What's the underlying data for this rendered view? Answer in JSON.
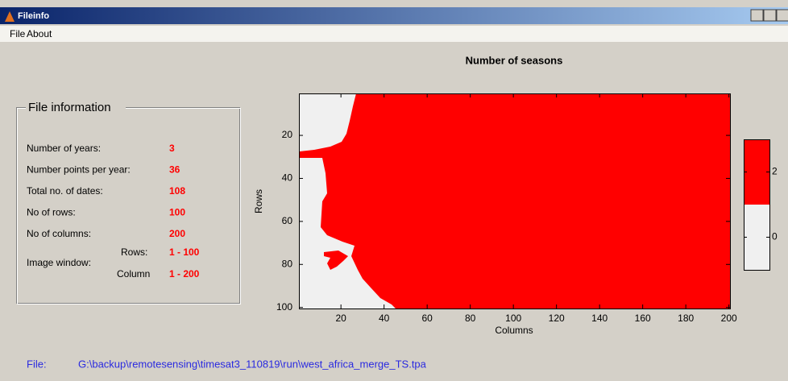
{
  "window": {
    "title": "Fileinfo"
  },
  "menu": [
    "File",
    "About"
  ],
  "file_info": {
    "title": "File information",
    "rows": [
      {
        "label": "Number of years:",
        "value": "3"
      },
      {
        "label": "Number points per year:",
        "value": "36"
      },
      {
        "label": "Total no. of dates:",
        "value": "108"
      },
      {
        "label": "No of rows:",
        "value": "100"
      },
      {
        "label": "No of columns:",
        "value": "200"
      }
    ],
    "image_window": {
      "label": "Image window:",
      "rows_label": "Rows:",
      "rows_value": "1 - 100",
      "column_label": "Column",
      "column_value": "1 - 200"
    }
  },
  "chart_data": {
    "type": "image",
    "title": "Number of seasons",
    "xlabel": "Columns",
    "ylabel": "Rows",
    "xlim": [
      0.5,
      200.5
    ],
    "ylim": [
      0.5,
      100.5
    ],
    "xticks": [
      20,
      40,
      60,
      80,
      100,
      120,
      140,
      160,
      180,
      200
    ],
    "yticks": [
      20,
      40,
      60,
      80,
      100
    ],
    "colors": [
      "#f0f0f0",
      "#ff0000"
    ],
    "colorbar": {
      "lim": [
        -1,
        3
      ],
      "ticks": [
        0,
        2
      ]
    }
  },
  "footer": {
    "label": "File:",
    "path": "G:\\backup\\remotesensing\\timesat3_110819\\run\\west_africa_merge_TS.tpa"
  }
}
